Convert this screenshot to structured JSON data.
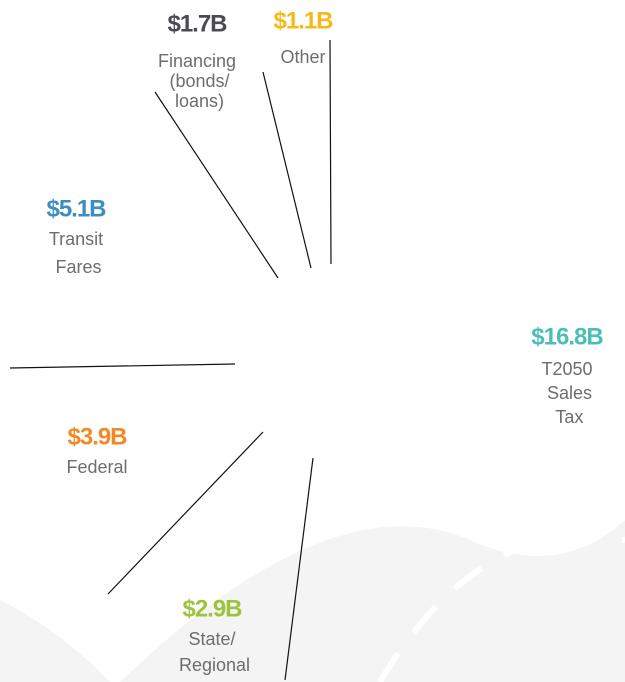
{
  "chart_data": {
    "type": "pie",
    "categories": [
      "T2050 Sales Tax",
      "State/ Regional",
      "Federal",
      "Transit Fares",
      "Financing (bonds/ loans)",
      "Other"
    ],
    "values": [
      16.8,
      2.9,
      3.9,
      5.1,
      1.7,
      1.1
    ],
    "value_labels": [
      "$16.8B",
      "$2.9B",
      "$3.9B",
      "$5.1B",
      "$1.7B",
      "$1.1B"
    ],
    "colors": [
      "#4bbfb7",
      "#9cc33c",
      "#f08a24",
      "#3a8fc0",
      "#4a4a55",
      "#f5b91a"
    ]
  }
}
